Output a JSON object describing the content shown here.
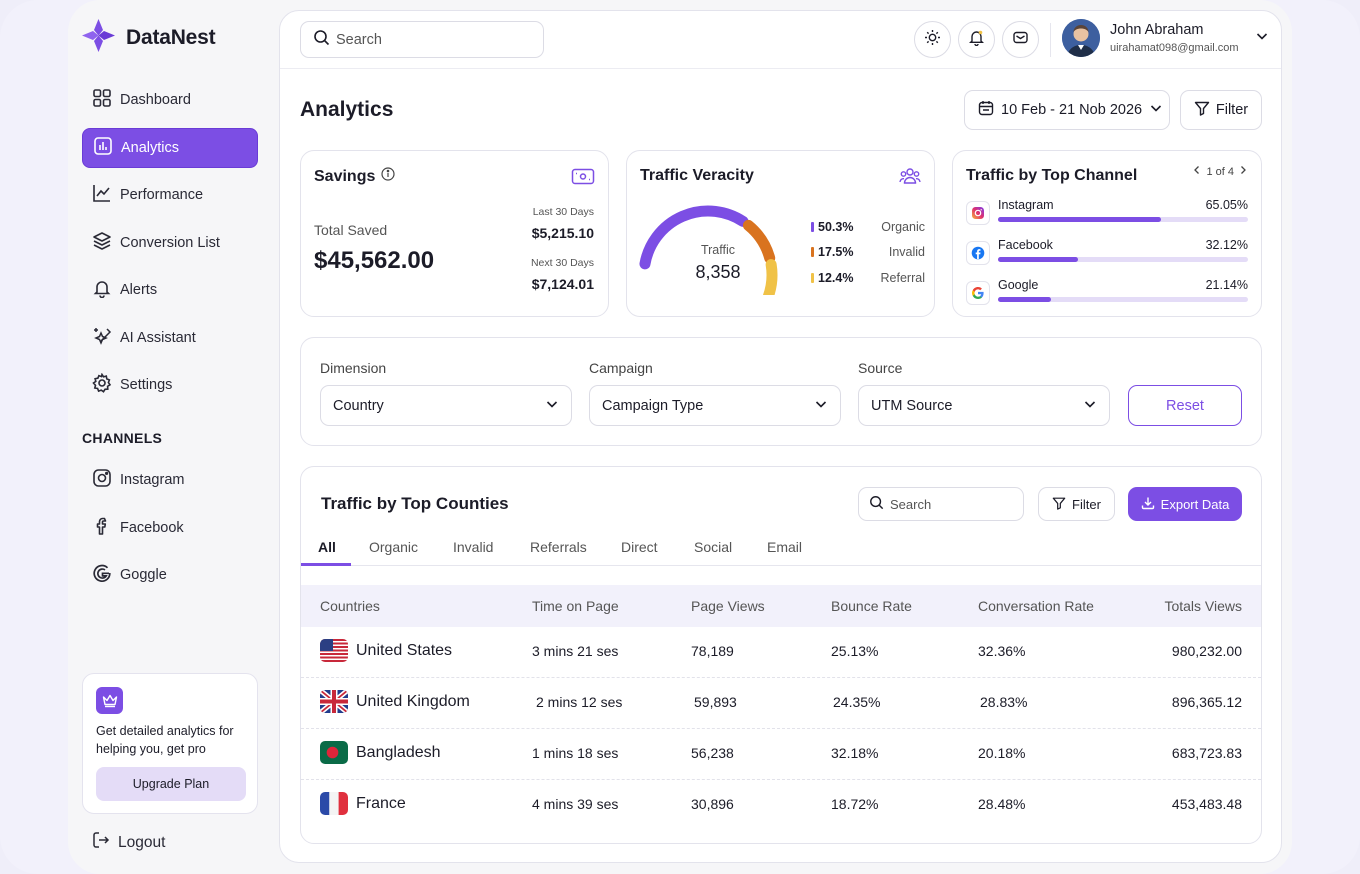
{
  "brand": {
    "name": "DataNest"
  },
  "sidebar": {
    "items": [
      {
        "label": "Dashboard",
        "icon": "grid-icon"
      },
      {
        "label": "Analytics",
        "icon": "chart-bar-icon",
        "active": true
      },
      {
        "label": "Performance",
        "icon": "line-chart-icon"
      },
      {
        "label": "Conversion List",
        "icon": "layers-icon"
      },
      {
        "label": "Alerts",
        "icon": "bell-icon"
      },
      {
        "label": "AI Assistant",
        "icon": "sparkle-icon"
      },
      {
        "label": "Settings",
        "icon": "gear-icon"
      }
    ],
    "channels_title": "CHANNELS",
    "channels": [
      {
        "label": "Instagram",
        "icon": "instagram-icon"
      },
      {
        "label": "Facebook",
        "icon": "facebook-icon"
      },
      {
        "label": "Goggle",
        "icon": "google-icon"
      }
    ],
    "upgrade": {
      "text": "Get detailed analytics for helping you, get pro",
      "button": "Upgrade Plan"
    },
    "logout": "Logout"
  },
  "topbar": {
    "search_placeholder": "Search",
    "user": {
      "name": "John Abraham",
      "email": "uirahamat098@gmail.com"
    }
  },
  "page": {
    "title": "Analytics",
    "date_range": "10 Feb - 21 Nob 2026",
    "filter_label": "Filter"
  },
  "savings": {
    "title": "Savings",
    "total_label": "Total Saved",
    "total": "$45,562.00",
    "last_label": "Last 30 Days",
    "last_value": "$5,215.10",
    "next_label": "Next 30 Days",
    "next_value": "$7,124.01"
  },
  "veracity": {
    "title": "Traffic Veracity",
    "center_label": "Traffic",
    "center_value": "8,358",
    "segments": [
      {
        "pct": "50.3%",
        "name": "Organic",
        "value": 50.3,
        "color": "#7c4ee4"
      },
      {
        "pct": "17.5%",
        "name": "Invalid",
        "value": 17.5,
        "color": "#d9731f"
      },
      {
        "pct": "12.4%",
        "name": "Referral",
        "value": 12.4,
        "color": "#f0c247"
      }
    ]
  },
  "channels_card": {
    "title": "Traffic by Top Channel",
    "pager": "1 of 4",
    "rows": [
      {
        "name": "Instagram",
        "pct": "65.05%",
        "value": 65.05,
        "icon": "instagram-icon"
      },
      {
        "name": "Facebook",
        "pct": "32.12%",
        "value": 32.12,
        "icon": "facebook-icon"
      },
      {
        "name": "Google",
        "pct": "21.14%",
        "value": 21.14,
        "icon": "google-icon"
      }
    ]
  },
  "filters": {
    "dimension": {
      "label": "Dimension",
      "value": "Country"
    },
    "campaign": {
      "label": "Campaign",
      "value": "Campaign Type"
    },
    "source": {
      "label": "Source",
      "value": "UTM Source"
    },
    "reset": "Reset"
  },
  "table": {
    "title": "Traffic by Top Counties",
    "search_placeholder": "Search",
    "filter": "Filter",
    "export": "Export Data",
    "tabs": [
      "All",
      "Organic",
      "Invalid",
      "Referrals",
      "Direct",
      "Social",
      "Email"
    ],
    "columns": [
      "Countries",
      "Time on Page",
      "Page Views",
      "Bounce Rate",
      "Conversation Rate",
      "Totals Views"
    ],
    "rows": [
      {
        "country": "United States",
        "flag": "us-flag",
        "time": "3 mins 21 ses",
        "views": "78,189",
        "bounce": "25.13%",
        "conv": "32.36%",
        "total": "980,232.00"
      },
      {
        "country": "United Kingdom",
        "flag": "uk-flag",
        "time": "2 mins 12 ses",
        "views": "59,893",
        "bounce": "24.35%",
        "conv": "28.83%",
        "total": "896,365.12"
      },
      {
        "country": "Bangladesh",
        "flag": "bd-flag",
        "time": "1 mins 18 ses",
        "views": "56,238",
        "bounce": "32.18%",
        "conv": "20.18%",
        "total": "683,723.83"
      },
      {
        "country": "France",
        "flag": "fr-flag",
        "time": "4 mins 39 ses",
        "views": "30,896",
        "bounce": "18.72%",
        "conv": "28.48%",
        "total": "453,483.48"
      }
    ]
  },
  "colors": {
    "accent": "#7c4ee4",
    "accent_light": "#e4dcf7",
    "orange": "#d9731f",
    "yellow": "#f0c247"
  }
}
